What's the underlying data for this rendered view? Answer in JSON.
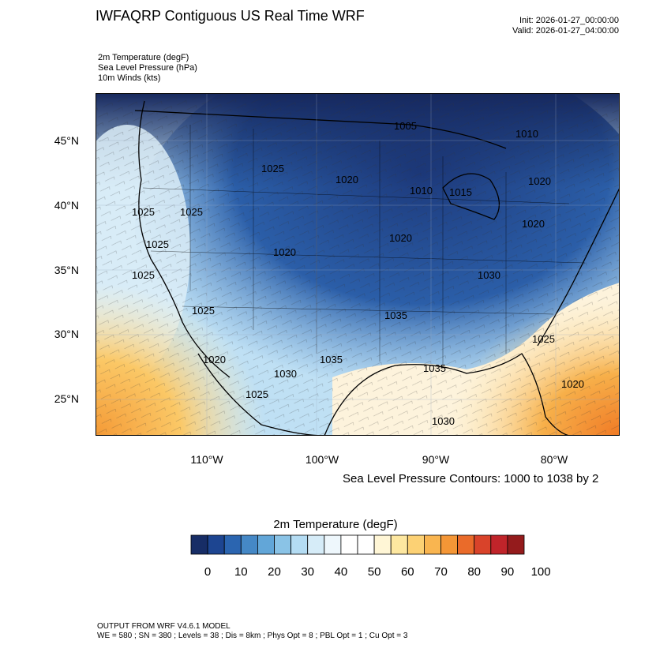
{
  "header": {
    "title": "IWFAQRP Contiguous US Real Time WRF",
    "init": "Init: 2026-01-27_00:00:00",
    "valid": "Valid: 2026-01-27_04:00:00"
  },
  "fields": {
    "line1": "2m Temperature   (degF)",
    "line2": "Sea Level Pressure   (hPa)",
    "line3": "10m Winds   (kts)"
  },
  "map": {
    "lat_labels": [
      "45°N",
      "40°N",
      "35°N",
      "30°N",
      "25°N"
    ],
    "lon_labels": [
      "110°W",
      "100°W",
      "90°W",
      "80°W"
    ],
    "pressure_labels": [
      "1005",
      "1010",
      "1010",
      "1015",
      "1020",
      "1020",
      "1020",
      "1020",
      "1020",
      "1025",
      "1025",
      "1025",
      "1025",
      "1025",
      "1025",
      "1020",
      "1030",
      "1025",
      "1035",
      "1035",
      "1035",
      "1030",
      "1025",
      "1020",
      "1030",
      "1020"
    ],
    "colors": {
      "deep_cold": "#1a2e6a",
      "cold": "#2c65b0",
      "cool": "#7db7e2",
      "mild": "#ddeff9",
      "warm": "#fbd98a",
      "hot": "#f2892f"
    }
  },
  "contour_note": "Sea Level Pressure Contours: 1000 to 1038 by 2",
  "colorbar": {
    "title": "2m Temperature  (degF)",
    "colors": [
      "#172d66",
      "#1d4591",
      "#2b65b0",
      "#4588c6",
      "#62a6d8",
      "#8ac3e6",
      "#b4dcf3",
      "#d6ecf8",
      "#eef7fc",
      "#ffffff",
      "#ffffff",
      "#fff6d6",
      "#fde7a0",
      "#fcd174",
      "#f9b550",
      "#f49636",
      "#ea6b2a",
      "#d9432a",
      "#c0242a",
      "#941b1c"
    ],
    "ticks": [
      "0",
      "10",
      "20",
      "30",
      "40",
      "50",
      "60",
      "70",
      "80",
      "90",
      "100"
    ]
  },
  "footer": {
    "line1": "OUTPUT FROM WRF V4.6.1 MODEL",
    "line2": "WE = 580 ; SN = 380 ; Levels = 38 ; Dis = 8km ; Phys Opt = 8 ; PBL Opt = 1 ; Cu Opt = 3"
  }
}
